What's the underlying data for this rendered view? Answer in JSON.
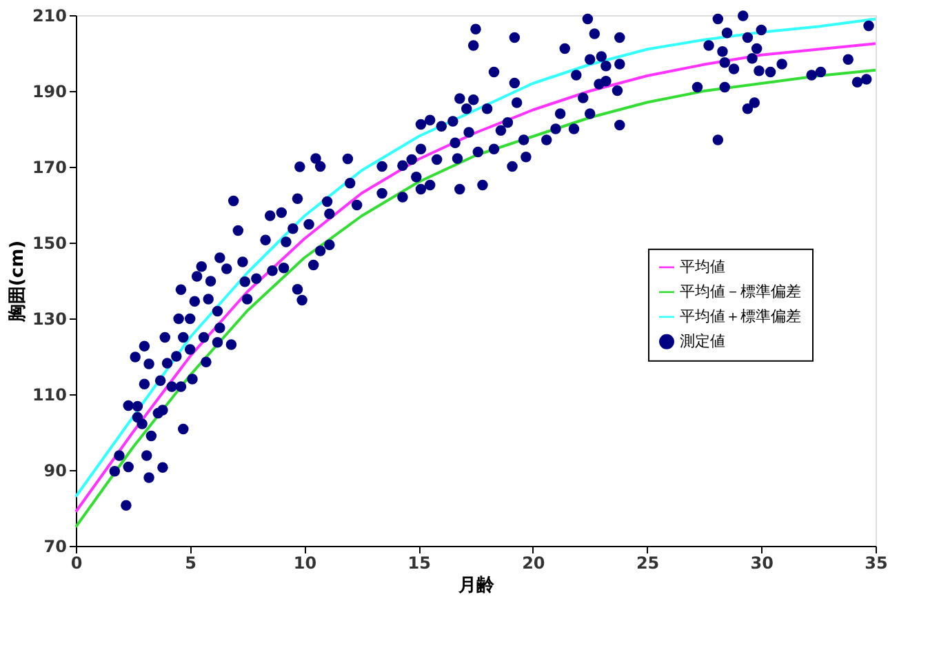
{
  "chart_data": {
    "type": "scatter",
    "xlabel": "月齢",
    "ylabel": "胸囲(cm)",
    "xlim": [
      0,
      35
    ],
    "ylim": [
      70,
      210
    ],
    "xticks": [
      0,
      5,
      10,
      15,
      20,
      25,
      30,
      35
    ],
    "yticks": [
      70,
      90,
      110,
      130,
      150,
      170,
      190,
      210
    ],
    "grid": false,
    "legend": "right",
    "series": [
      {
        "name": "平均値",
        "type": "line",
        "color": "#ff33ff",
        "line_style": "solid",
        "marker": "none",
        "x": [
          0,
          2.5,
          5,
          7.5,
          10,
          12.5,
          15,
          17.5,
          20,
          22.5,
          25,
          27.5,
          30,
          32.5,
          35
        ],
        "values": [
          79,
          100,
          120,
          137,
          151,
          163,
          172,
          179,
          185,
          190,
          194,
          197,
          199.5,
          201,
          202.5
        ]
      },
      {
        "name": "平均値－標準偏差",
        "type": "line",
        "color": "#33dd33",
        "line_style": "solid",
        "marker": "none",
        "x": [
          0,
          2.5,
          5,
          7.5,
          10,
          12.5,
          15,
          17.5,
          20,
          22.5,
          25,
          27.5,
          30,
          32.5,
          35
        ],
        "values": [
          75,
          96,
          115,
          132,
          146,
          157,
          166,
          173,
          178,
          183,
          187,
          190,
          192,
          194,
          195.5
        ]
      },
      {
        "name": "平均値＋標準偏差",
        "type": "line",
        "color": "#33ffff",
        "line_style": "solid",
        "marker": "none",
        "x": [
          0,
          2.5,
          5,
          7.5,
          10,
          12.5,
          15,
          17.5,
          20,
          22.5,
          25,
          27.5,
          30,
          32.5,
          35
        ],
        "values": [
          83,
          104,
          125,
          142,
          157,
          169,
          178,
          185,
          192,
          197,
          201,
          203.5,
          205.5,
          207,
          209
        ]
      },
      {
        "name": "測定値",
        "color": "#000080",
        "marker": "circle",
        "x": [
          2.2,
          1.7,
          1.9,
          2.3,
          2.3,
          2.7,
          2.7,
          2.6,
          3.0,
          3.2,
          3.0,
          2.9,
          3.3,
          3.2,
          3.1,
          3.8,
          3.8,
          3.6,
          4.7,
          3.7,
          3.9,
          4.0,
          4.2,
          4.6,
          4.4,
          4.5,
          4.6,
          4.7,
          5.0,
          5.0,
          5.1,
          5.2,
          5.3,
          5.5,
          5.6,
          5.7,
          5.8,
          5.9,
          6.2,
          6.3,
          6.2,
          6.3,
          6.6,
          6.8,
          6.9,
          7.1,
          7.3,
          7.4,
          7.5,
          7.9,
          8.3,
          8.5,
          8.6,
          9.0,
          9.1,
          9.2,
          9.5,
          9.7,
          9.9,
          9.7,
          9.8,
          10.2,
          10.5,
          10.7,
          10.4,
          10.7,
          11.1,
          11.0,
          11.1,
          11.9,
          12.0,
          12.3,
          13.4,
          13.4,
          14.3,
          14.3,
          14.7,
          15.1,
          15.5,
          15.1,
          14.9,
          15.1,
          15.5,
          15.8,
          16.0,
          16.5,
          16.6,
          16.8,
          16.7,
          16.8,
          17.1,
          17.4,
          17.2,
          17.4,
          17.5,
          17.6,
          17.8,
          18.0,
          18.3,
          18.3,
          18.6,
          18.9,
          19.1,
          19.2,
          19.2,
          19.3,
          19.6,
          19.7,
          20.6,
          21.0,
          21.2,
          21.4,
          21.8,
          21.9,
          22.2,
          22.4,
          22.5,
          22.5,
          22.7,
          22.9,
          23.0,
          23.2,
          23.2,
          23.7,
          23.8,
          23.8,
          23.8,
          27.2,
          27.7,
          28.1,
          28.1,
          28.3,
          28.4,
          28.4,
          28.5,
          28.8,
          29.2,
          29.4,
          29.6,
          29.4,
          29.7,
          29.8,
          30.0,
          29.9,
          30.4,
          30.9,
          32.2,
          32.6,
          33.8,
          34.2,
          34.6,
          34.7
        ],
        "values": [
          80.7,
          89.7,
          93.8,
          90.8,
          107,
          106.8,
          103.9,
          119.8,
          122.7,
          118,
          112.7,
          102.2,
          99,
          88,
          93.8,
          90.7,
          105.8,
          105,
          100.8,
          113.6,
          125,
          118.2,
          112,
          112,
          120,
          129.9,
          137.6,
          125,
          121.8,
          129.9,
          114,
          134.5,
          141.1,
          143.7,
          125,
          118.5,
          135.1,
          139.8,
          131.9,
          127.5,
          123.7,
          146,
          143.1,
          123.1,
          161,
          153.2,
          144.9,
          139.7,
          135.1,
          140.5,
          150.7,
          157.1,
          142.6,
          157.9,
          143.3,
          150.2,
          153.7,
          137.7,
          134.8,
          161.6,
          170,
          154.8,
          172.2,
          170.1,
          144.1,
          147.8,
          149.4,
          160.8,
          157.6,
          172.1,
          165.7,
          159.9,
          170.1,
          163,
          162,
          170.3,
          171.9,
          181.2,
          182.3,
          174.7,
          167.3,
          164.1,
          165.2,
          171.9,
          180.7,
          182,
          176.3,
          164.1,
          172.2,
          188,
          185.3,
          187.7,
          179.1,
          202,
          206.3,
          173.9,
          165.2,
          185.3,
          195,
          174.7,
          179.6,
          181.7,
          170.1,
          204.1,
          192.1,
          186.9,
          177.1,
          172.6,
          177.1,
          180,
          184,
          201.2,
          180,
          194.2,
          188.2,
          209,
          198.3,
          184,
          205.1,
          191.8,
          199.1,
          196.6,
          192.6,
          190.1,
          204.1,
          197.1,
          181,
          191,
          202,
          209,
          177.1,
          200.4,
          197.5,
          191,
          205.3,
          195.8,
          209.8,
          204.1,
          198.6,
          185.3,
          186.9,
          201.2,
          206.1,
          195.3,
          195,
          197.1,
          194.2,
          195,
          198.3,
          192.3,
          193.1,
          207.2
        ]
      }
    ]
  }
}
